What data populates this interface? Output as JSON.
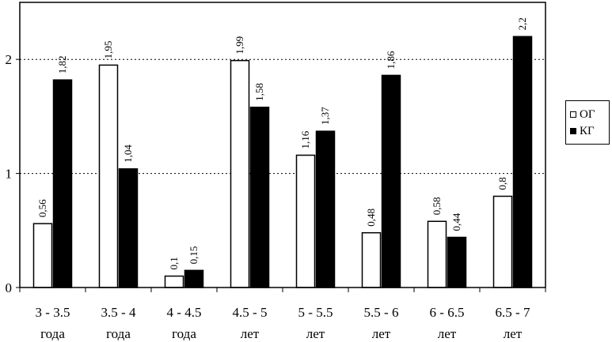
{
  "chart_data": {
    "type": "bar",
    "categories": [
      [
        "3 - 3.5",
        "года"
      ],
      [
        "3.5 - 4",
        "года"
      ],
      [
        "4 - 4.5",
        "года"
      ],
      [
        "4.5 - 5",
        "лет"
      ],
      [
        "5 - 5.5",
        "лет"
      ],
      [
        "5.5 - 6",
        "лет"
      ],
      [
        "6 - 6.5",
        "лет"
      ],
      [
        "6.5 - 7",
        "лет"
      ]
    ],
    "series": [
      {
        "name": "ОГ",
        "color": "#ffffff",
        "values": [
          0.56,
          1.95,
          0.1,
          1.99,
          1.16,
          0.48,
          0.58,
          0.8
        ],
        "labels": [
          "0,56",
          "1,95",
          "0,1",
          "1,99",
          "1,16",
          "0,48",
          "0,58",
          "0,8"
        ]
      },
      {
        "name": "КГ",
        "color": "#000000",
        "values": [
          1.82,
          1.04,
          0.15,
          1.58,
          1.37,
          1.86,
          0.44,
          2.2
        ],
        "labels": [
          "1,82",
          "1,04",
          "0,15",
          "1,58",
          "1,37",
          "1,86",
          "0,44",
          "2,2"
        ]
      }
    ],
    "yticks": [
      "0",
      "1",
      "2"
    ],
    "ylim": [
      0,
      2.5
    ],
    "grid": "dotted horizontal",
    "legend_position": "right"
  }
}
